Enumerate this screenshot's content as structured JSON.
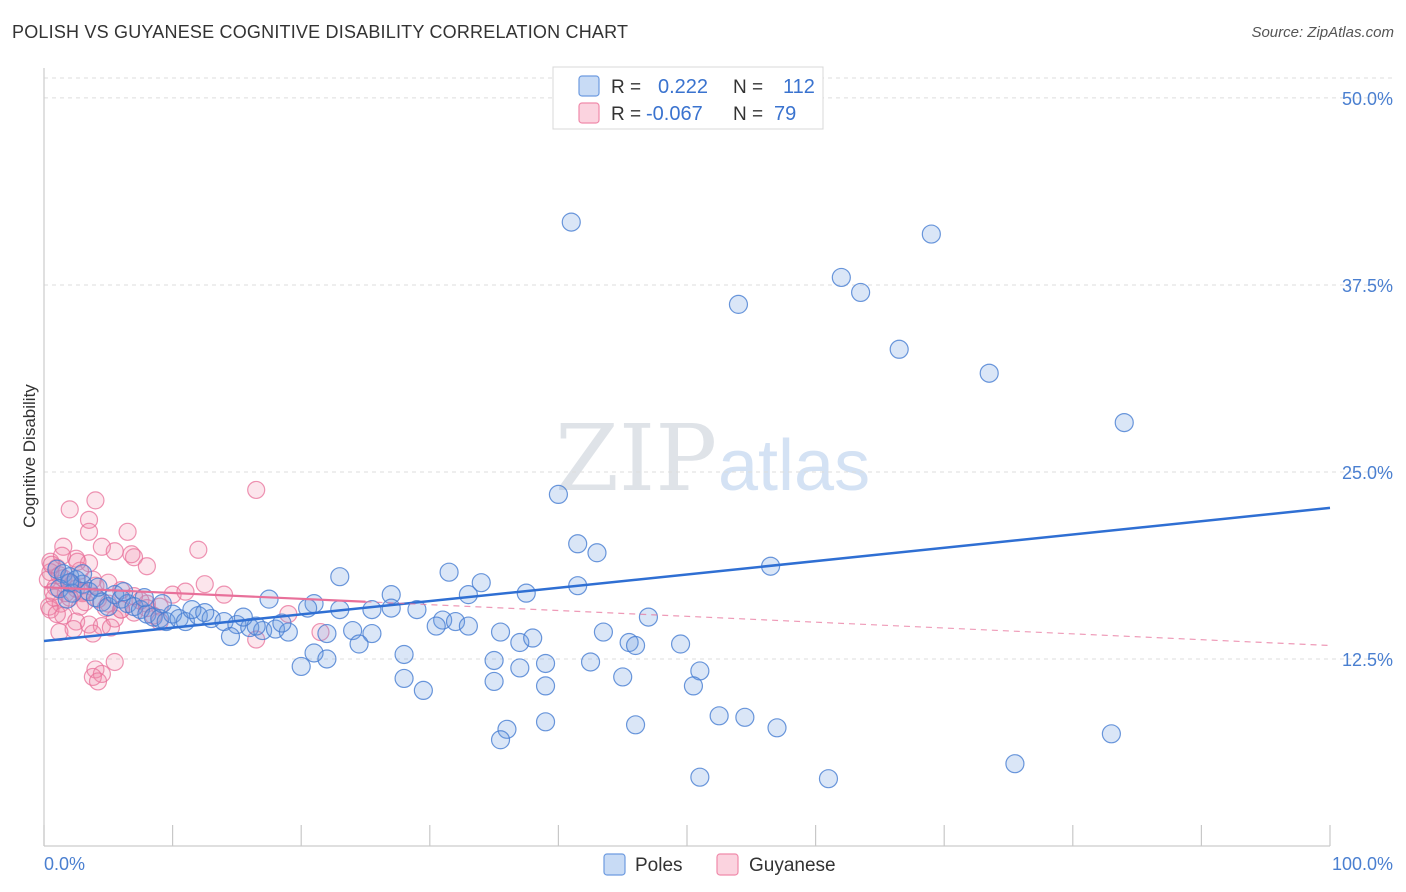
{
  "title": "POLISH VS GUYANESE COGNITIVE DISABILITY CORRELATION CHART",
  "source": "Source: ZipAtlas.com",
  "watermark": {
    "zip": "ZIP",
    "atlas": "atlas"
  },
  "legend": {
    "rows": [
      {
        "r_label": "R =",
        "r_value": "0.222",
        "n_label": "N =",
        "n_value": "112",
        "color": "#6d9be0"
      },
      {
        "r_label": "R =",
        "r_value": "-0.067",
        "n_label": "N =",
        "n_value": "79",
        "color": "#f08aaa"
      }
    ]
  },
  "chart_data": {
    "type": "scatter",
    "title": "POLISH VS GUYANESE COGNITIVE DISABILITY CORRELATION CHART",
    "ylabel": "Cognitive Disability",
    "xlabel": "",
    "xlim": [
      0,
      100
    ],
    "ylim": [
      0,
      52
    ],
    "x_tick_labels": [
      "0.0%",
      "100.0%"
    ],
    "y_ticks": [
      12.5,
      25.0,
      37.5,
      50.0
    ],
    "y_tick_labels": [
      "12.5%",
      "25.0%",
      "37.5%",
      "50.0%"
    ],
    "grid": true,
    "legend_position": "top-center",
    "colors": {
      "Poles": "#6d9be0",
      "Guyanese": "#f08aaa",
      "poles_line": "#2f6fd3",
      "guyanese_line": "#e8709a"
    },
    "series": [
      {
        "name": "Poles",
        "r": 0.222,
        "n": 112,
        "trend": {
          "x": [
            0,
            100
          ],
          "y": [
            13.7,
            22.6
          ]
        },
        "points": [
          [
            41,
            41.7
          ],
          [
            69,
            40.9
          ],
          [
            62,
            38.0
          ],
          [
            63.5,
            37.0
          ],
          [
            54,
            36.2
          ],
          [
            66.5,
            33.2
          ],
          [
            73.5,
            31.6
          ],
          [
            84,
            28.3
          ],
          [
            40,
            23.5
          ],
          [
            41.5,
            20.2
          ],
          [
            43,
            19.6
          ],
          [
            56.5,
            18.7
          ],
          [
            31.5,
            18.3
          ],
          [
            23,
            18.0
          ],
          [
            34,
            17.6
          ],
          [
            41.5,
            17.4
          ],
          [
            27,
            16.8
          ],
          [
            33,
            16.8
          ],
          [
            37.5,
            16.9
          ],
          [
            17.5,
            16.5
          ],
          [
            21,
            16.2
          ],
          [
            20.5,
            15.9
          ],
          [
            25.5,
            15.8
          ],
          [
            27,
            15.9
          ],
          [
            29,
            15.8
          ],
          [
            23,
            15.8
          ],
          [
            47,
            15.3
          ],
          [
            31,
            15.1
          ],
          [
            32,
            15.0
          ],
          [
            30.5,
            14.7
          ],
          [
            33,
            14.7
          ],
          [
            24,
            14.4
          ],
          [
            25.5,
            14.2
          ],
          [
            22,
            14.2
          ],
          [
            35.5,
            14.3
          ],
          [
            43.5,
            14.3
          ],
          [
            37,
            13.6
          ],
          [
            38,
            13.9
          ],
          [
            45.5,
            13.6
          ],
          [
            46,
            13.4
          ],
          [
            49.5,
            13.5
          ],
          [
            24.5,
            13.5
          ],
          [
            28,
            12.8
          ],
          [
            21,
            12.9
          ],
          [
            22,
            12.5
          ],
          [
            20,
            12.0
          ],
          [
            35,
            12.4
          ],
          [
            39,
            12.2
          ],
          [
            42.5,
            12.3
          ],
          [
            37,
            11.9
          ],
          [
            51,
            11.7
          ],
          [
            28,
            11.2
          ],
          [
            35,
            11.0
          ],
          [
            45,
            11.3
          ],
          [
            39,
            10.7
          ],
          [
            50.5,
            10.7
          ],
          [
            29.5,
            10.4
          ],
          [
            52.5,
            8.7
          ],
          [
            54.5,
            8.6
          ],
          [
            57,
            7.9
          ],
          [
            39,
            8.3
          ],
          [
            46,
            8.1
          ],
          [
            36,
            7.8
          ],
          [
            35.5,
            7.1
          ],
          [
            83,
            7.5
          ],
          [
            51,
            4.6
          ],
          [
            61,
            4.5
          ],
          [
            75.5,
            5.5
          ],
          [
            1,
            18.5
          ],
          [
            1.5,
            18.2
          ],
          [
            2,
            18.0
          ],
          [
            2.5,
            17.8
          ],
          [
            3,
            17.5
          ],
          [
            1.2,
            17.2
          ],
          [
            2.2,
            16.9
          ],
          [
            3.5,
            17.0
          ],
          [
            4,
            16.6
          ],
          [
            4.5,
            16.3
          ],
          [
            5,
            16.0
          ],
          [
            5.5,
            16.8
          ],
          [
            6,
            16.5
          ],
          [
            6.5,
            16.2
          ],
          [
            7,
            16.0
          ],
          [
            7.5,
            15.8
          ],
          [
            8,
            15.5
          ],
          [
            8.5,
            15.3
          ],
          [
            9,
            15.2
          ],
          [
            9.5,
            15.0
          ],
          [
            10,
            15.5
          ],
          [
            10.5,
            15.2
          ],
          [
            11,
            15.0
          ],
          [
            12,
            15.4
          ],
          [
            13,
            15.2
          ],
          [
            14,
            15.0
          ],
          [
            15,
            14.8
          ],
          [
            16,
            14.6
          ],
          [
            17,
            14.4
          ],
          [
            18,
            14.5
          ],
          [
            19,
            14.3
          ],
          [
            14.5,
            14.0
          ],
          [
            16.5,
            14.7
          ],
          [
            18.5,
            14.9
          ],
          [
            3,
            18.2
          ],
          [
            2,
            17.6
          ],
          [
            1.8,
            16.5
          ],
          [
            4.2,
            17.3
          ],
          [
            6.2,
            17.0
          ],
          [
            7.8,
            16.6
          ],
          [
            9.2,
            16.2
          ],
          [
            11.5,
            15.8
          ],
          [
            12.5,
            15.6
          ],
          [
            15.5,
            15.3
          ]
        ]
      },
      {
        "name": "Guyanese",
        "r": -0.067,
        "n": 79,
        "trend": {
          "x": [
            0,
            100
          ],
          "y": [
            17.3,
            13.4
          ]
        },
        "points": [
          [
            16.5,
            23.8
          ],
          [
            4,
            23.1
          ],
          [
            2,
            22.5
          ],
          [
            3.5,
            21.8
          ],
          [
            3.5,
            21.0
          ],
          [
            6.5,
            21.0
          ],
          [
            1.5,
            20.0
          ],
          [
            4.5,
            20.0
          ],
          [
            5.5,
            19.7
          ],
          [
            12,
            19.8
          ],
          [
            7,
            19.3
          ],
          [
            2.5,
            19.2
          ],
          [
            0.5,
            19.0
          ],
          [
            8,
            18.7
          ],
          [
            3.5,
            18.9
          ],
          [
            1,
            18.6
          ],
          [
            0.5,
            18.3
          ],
          [
            1.5,
            17.9
          ],
          [
            2,
            17.6
          ],
          [
            2.5,
            17.2
          ],
          [
            3,
            16.9
          ],
          [
            0.8,
            16.6
          ],
          [
            1.3,
            16.2
          ],
          [
            2.8,
            16.0
          ],
          [
            4.2,
            16.5
          ],
          [
            5,
            16.2
          ],
          [
            6,
            15.8
          ],
          [
            7,
            15.6
          ],
          [
            8,
            16.2
          ],
          [
            9,
            16.0
          ],
          [
            10,
            16.8
          ],
          [
            11,
            17.0
          ],
          [
            12.5,
            17.5
          ],
          [
            14,
            16.8
          ],
          [
            19,
            15.5
          ],
          [
            0.5,
            15.8
          ],
          [
            1.5,
            15.4
          ],
          [
            2.5,
            15.0
          ],
          [
            3.5,
            14.8
          ],
          [
            4.5,
            14.7
          ],
          [
            5.5,
            15.2
          ],
          [
            6,
            15.8
          ],
          [
            7.5,
            16.4
          ],
          [
            8.5,
            15.4
          ],
          [
            9,
            15.0
          ],
          [
            0.3,
            17.8
          ],
          [
            0.6,
            18.8
          ],
          [
            1.2,
            18.1
          ],
          [
            2.2,
            17.5
          ],
          [
            2.8,
            18.4
          ],
          [
            3.8,
            17.8
          ],
          [
            0.9,
            17.3
          ],
          [
            1.7,
            16.9
          ],
          [
            3.2,
            16.3
          ],
          [
            4.8,
            15.9
          ],
          [
            2.3,
            14.5
          ],
          [
            3.8,
            14.2
          ],
          [
            5.2,
            14.6
          ],
          [
            1.2,
            14.3
          ],
          [
            16.5,
            13.8
          ],
          [
            21.5,
            14.3
          ],
          [
            5.5,
            12.3
          ],
          [
            4,
            11.8
          ],
          [
            4.5,
            11.5
          ],
          [
            3.8,
            11.3
          ],
          [
            4.2,
            11.0
          ],
          [
            0.4,
            16.0
          ],
          [
            1.0,
            15.5
          ],
          [
            2.0,
            16.6
          ],
          [
            3.0,
            17.0
          ],
          [
            4.0,
            17.4
          ],
          [
            5.0,
            17.6
          ],
          [
            6.0,
            17.1
          ],
          [
            7.0,
            16.7
          ],
          [
            8.0,
            15.9
          ],
          [
            1.4,
            19.4
          ],
          [
            2.6,
            19.0
          ],
          [
            6.8,
            19.5
          ],
          [
            0.7,
            17.0
          ]
        ]
      }
    ]
  },
  "bottom_legend": [
    {
      "label": "Poles",
      "color": "#6d9be0"
    },
    {
      "label": "Guyanese",
      "color": "#f08aaa"
    }
  ]
}
